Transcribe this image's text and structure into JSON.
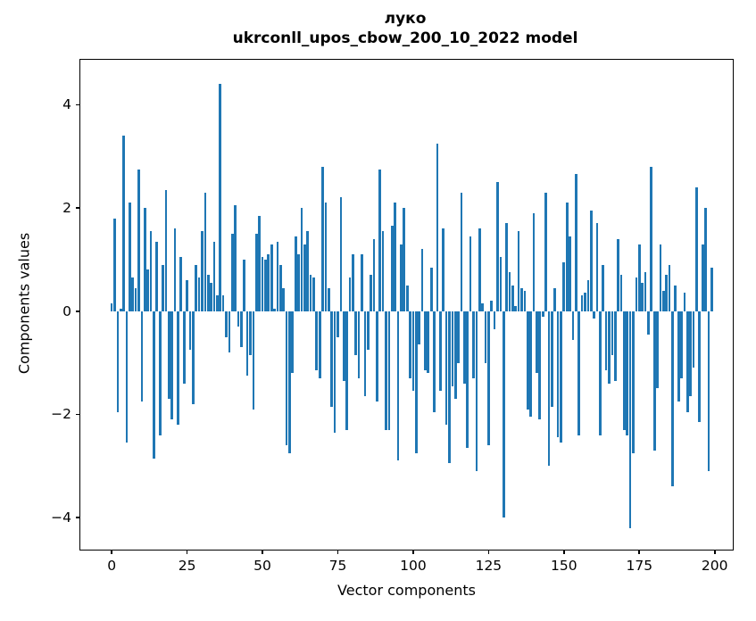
{
  "chart": {
    "title_line1": "луко",
    "title_line2": "ukrconll_upos_cbow_200_10_2022 model",
    "xlabel": "Vector components",
    "ylabel": "Components values"
  },
  "chart_data": {
    "type": "bar",
    "title": "луко\nukrconll_upos_cbow_200_10_2022 model",
    "xlabel": "Vector components",
    "ylabel": "Components values",
    "bar_color": "#1f77b4",
    "grid": false,
    "legend": null,
    "xticks": [
      0,
      25,
      50,
      75,
      100,
      125,
      150,
      175,
      200
    ],
    "yticks": [
      4,
      2,
      0,
      -2,
      -4
    ],
    "xlim": [
      -10.4,
      206.0
    ],
    "ylim": [
      -4.62,
      4.87
    ],
    "n_bars": 200,
    "values": [
      0.15,
      1.8,
      -1.95,
      0.05,
      3.4,
      -2.55,
      2.1,
      0.65,
      0.45,
      2.75,
      -1.75,
      2.0,
      0.8,
      1.55,
      -2.85,
      1.35,
      -2.4,
      0.9,
      2.35,
      -1.7,
      -2.1,
      1.6,
      -2.2,
      1.05,
      -1.4,
      0.6,
      -0.75,
      -1.8,
      0.9,
      0.65,
      1.55,
      2.3,
      0.7,
      0.55,
      1.35,
      0.3,
      4.4,
      0.3,
      -0.5,
      -0.8,
      1.5,
      2.05,
      -0.3,
      -0.7,
      1.0,
      -1.25,
      -0.85,
      -1.9,
      1.5,
      1.85,
      1.05,
      1.0,
      1.1,
      1.3,
      0.05,
      1.35,
      0.9,
      0.45,
      -2.6,
      -2.75,
      -1.2,
      1.45,
      1.1,
      2.0,
      1.3,
      1.55,
      0.7,
      0.65,
      -1.15,
      -1.3,
      2.8,
      2.1,
      0.45,
      -1.85,
      -2.35,
      -0.5,
      2.2,
      -1.35,
      -2.3,
      0.65,
      1.1,
      -0.85,
      -1.3,
      1.1,
      -1.65,
      -0.75,
      0.7,
      1.4,
      -1.75,
      2.75,
      1.55,
      -2.3,
      -2.3,
      1.65,
      2.1,
      -2.9,
      1.3,
      2.0,
      0.5,
      -1.3,
      -1.55,
      -2.75,
      -0.65,
      1.2,
      -1.15,
      -1.2,
      0.85,
      -1.95,
      3.25,
      -1.55,
      1.6,
      -2.2,
      -2.95,
      -1.45,
      -1.7,
      -1.0,
      2.3,
      -1.4,
      -2.65,
      1.45,
      -1.3,
      -3.1,
      1.6,
      0.15,
      -1.0,
      -2.6,
      0.2,
      -0.35,
      2.5,
      1.05,
      -4.0,
      1.7,
      0.75,
      0.5,
      0.1,
      1.55,
      0.45,
      0.4,
      -1.9,
      -2.05,
      1.9,
      -1.2,
      -2.1,
      -0.1,
      2.3,
      -3.0,
      -1.85,
      0.45,
      -2.45,
      -2.55,
      0.95,
      2.1,
      1.45,
      -0.55,
      2.65,
      -2.4,
      0.3,
      0.35,
      0.6,
      1.95,
      -0.15,
      1.7,
      -2.4,
      0.9,
      -1.15,
      -1.4,
      -0.85,
      -1.35,
      1.4,
      0.7,
      -2.3,
      -2.4,
      -4.2,
      -2.75,
      0.65,
      1.3,
      0.55,
      0.75,
      -0.45,
      2.8,
      -2.7,
      -1.5,
      1.3,
      0.4,
      0.7,
      0.9,
      -3.4,
      0.5,
      -1.75,
      -1.3,
      0.35,
      -1.95,
      -1.65,
      -1.1,
      2.4,
      -2.15,
      1.3,
      2.0,
      -3.1,
      0.85
    ]
  }
}
